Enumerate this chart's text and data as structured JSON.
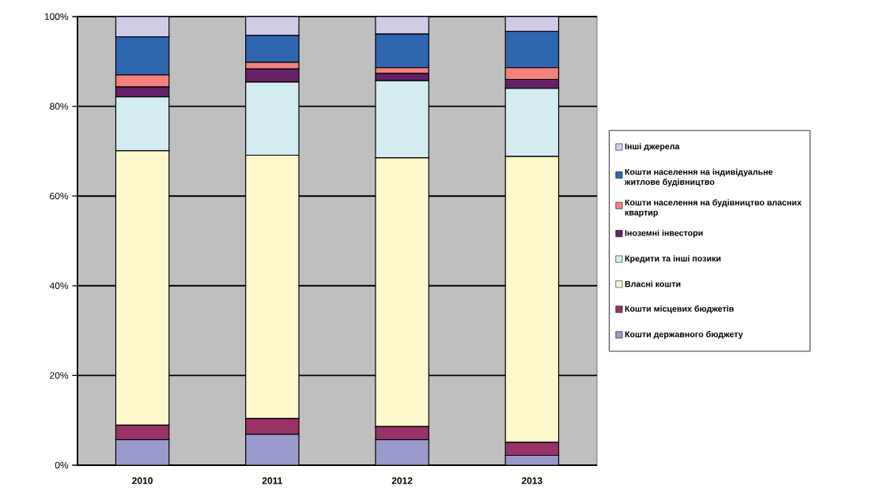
{
  "chart_data": {
    "type": "bar",
    "stacked": true,
    "categories": [
      "2010",
      "2011",
      "2012",
      "2013"
    ],
    "series": [
      {
        "name": "Кошти державного бюджету",
        "color": "#9999cc",
        "values": [
          5.7,
          6.9,
          5.7,
          2.2
        ]
      },
      {
        "name": "Кошти місцевих бюджетів",
        "color": "#993366",
        "values": [
          3.2,
          3.5,
          2.9,
          2.9
        ]
      },
      {
        "name": "Власні кошти",
        "color": "#fcf8cc",
        "values": [
          61.2,
          58.7,
          59.9,
          63.7
        ]
      },
      {
        "name": "Кредити та інші позики",
        "color": "#d3ecf2",
        "values": [
          12.0,
          16.3,
          17.2,
          15.2
        ]
      },
      {
        "name": "Іноземні інвестори",
        "color": "#662266",
        "values": [
          2.2,
          2.9,
          1.6,
          2.0
        ]
      },
      {
        "name": "Кошти населення на будівництво власних квартир",
        "color": "#f48080",
        "values": [
          2.7,
          1.5,
          1.3,
          2.6
        ]
      },
      {
        "name": "Кошти населення на індивідуальне житлове будівництво",
        "color": "#2e66b0",
        "values": [
          8.5,
          6.0,
          7.5,
          8.1
        ]
      },
      {
        "name": "Інші джерела",
        "color": "#d0cce8",
        "values": [
          4.5,
          4.2,
          3.9,
          3.3
        ]
      }
    ],
    "ylim": [
      0,
      100
    ],
    "yticks": [
      {
        "value": 0,
        "label": "0%"
      },
      {
        "value": 20,
        "label": "20%"
      },
      {
        "value": 40,
        "label": "40%"
      },
      {
        "value": 60,
        "label": "60%"
      },
      {
        "value": 80,
        "label": "80%"
      },
      {
        "value": 100,
        "label": "100%"
      }
    ],
    "grid": "y",
    "legend": "right"
  }
}
